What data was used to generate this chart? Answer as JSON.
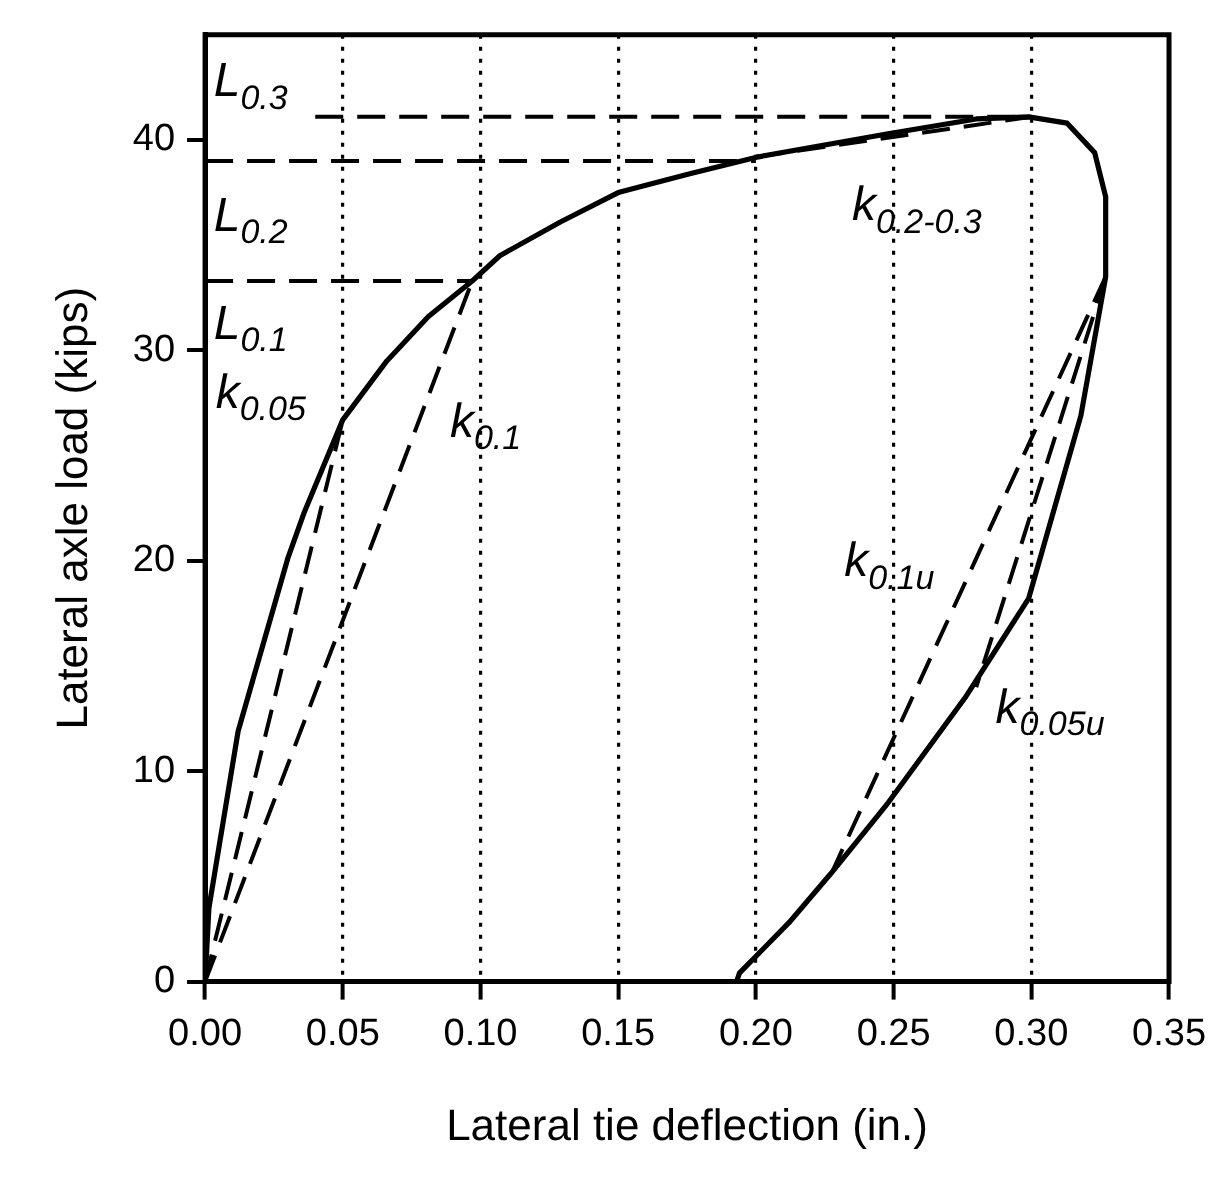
{
  "chart_data": {
    "type": "line",
    "xlabel": "Lateral tie deflection (in.)",
    "ylabel": "Lateral axle load (kips)",
    "xlim": [
      0,
      0.35
    ],
    "ylim": [
      0,
      45
    ],
    "xticks": [
      {
        "value": 0,
        "label": "0.00"
      },
      {
        "value": 0.05,
        "label": "0.05"
      },
      {
        "value": 0.1,
        "label": "0.10"
      },
      {
        "value": 0.15,
        "label": "0.15"
      },
      {
        "value": 0.2,
        "label": "0.20"
      },
      {
        "value": 0.25,
        "label": "0.25"
      },
      {
        "value": 0.3,
        "label": "0.30"
      },
      {
        "value": 0.35,
        "label": "0.35"
      }
    ],
    "yticks": [
      0,
      10,
      20,
      30,
      40
    ],
    "grid": "x",
    "legend": false,
    "marker": "none",
    "series": [
      {
        "color": "#000000",
        "line_style": "solid",
        "x": [
          0,
          0.0014,
          0.012,
          0.021,
          0.03,
          0.036,
          0.05,
          0.066,
          0.081,
          0.097,
          0.107,
          0.129,
          0.15,
          0.176,
          0.201,
          0.248,
          0.28,
          0.299,
          0.313,
          0.323,
          0.327,
          0.327,
          0.318,
          0.299,
          0.276,
          0.248,
          0.227,
          0.212,
          0.194,
          0.193
        ],
        "values": [
          0,
          3.5,
          11.9,
          16,
          20.1,
          22.3,
          26.7,
          29.5,
          31.6,
          33.3,
          34.5,
          36.1,
          37.5,
          38.4,
          39.2,
          40.3,
          41,
          41.1,
          40.8,
          39.4,
          37.3,
          33.5,
          26.9,
          18.2,
          13.5,
          8.5,
          5.1,
          2.8,
          0.4,
          0
        ]
      },
      {
        "color": "#000000",
        "line_style": "dashed",
        "x": [
          0.04,
          0.3
        ],
        "values": [
          41.1,
          41.1
        ]
      },
      {
        "color": "#000000",
        "line_style": "dashed",
        "x": [
          0,
          0.2
        ],
        "values": [
          39,
          39
        ]
      },
      {
        "color": "#000000",
        "line_style": "dashed",
        "x": [
          0,
          0.097
        ],
        "values": [
          33.3,
          33.3
        ]
      },
      {
        "color": "#000000",
        "line_style": "dashed",
        "x": [
          0,
          0.05
        ],
        "values": [
          0,
          26.7
        ]
      },
      {
        "color": "#000000",
        "line_style": "dashed",
        "x": [
          0,
          0.097
        ],
        "values": [
          0,
          33.3
        ]
      },
      {
        "color": "#000000",
        "line_style": "dashed",
        "x": [
          0.2,
          0.3
        ],
        "values": [
          39.2,
          41.1
        ]
      },
      {
        "color": "#000000",
        "line_style": "dashed",
        "x": [
          0.327,
          0.228
        ],
        "values": [
          33.5,
          5.3
        ]
      },
      {
        "color": "#000000",
        "line_style": "dashed",
        "x": [
          0.327,
          0.28
        ],
        "values": [
          33.5,
          14
        ]
      }
    ],
    "annotations": [
      "L$_{0.3}$",
      "L$_{0.2}$",
      "L$_{0.1}$",
      "k$_{0.05}$",
      "k$_{0.1}$",
      "k$_{0.2-0.3}$",
      "k$_{0.1u}$",
      "k$_{0.05u}$"
    ]
  }
}
